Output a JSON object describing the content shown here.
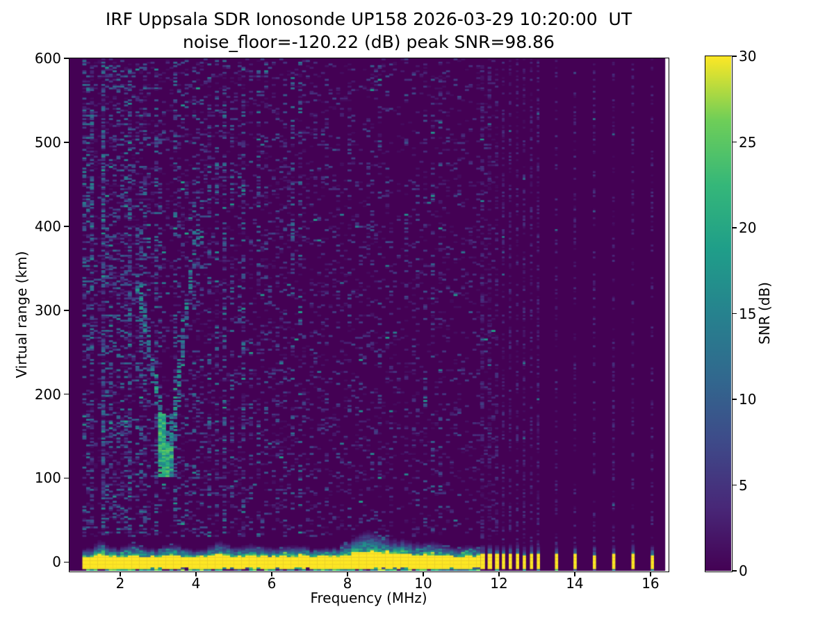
{
  "chart_data": {
    "type": "heatmap",
    "title": "IRF Uppsala SDR Ionosonde UP158 2026-03-29 10:20:00  UT",
    "subtitle": "noise_floor=-120.22 (dB) peak SNR=98.86",
    "station": "IRF Uppsala SDR Ionosonde UP158",
    "timestamp_ut": "2026-03-29 10:20:00",
    "noise_floor_db": -120.22,
    "peak_snr_db": 98.86,
    "xlabel": "Frequency (MHz)",
    "ylabel": "Virtual range (km)",
    "xlim": [
      0.66,
      16.46
    ],
    "ylim": [
      -10.5,
      600.2
    ],
    "xticks": [
      2,
      4,
      6,
      8,
      10,
      12,
      14,
      16
    ],
    "yticks": [
      0,
      100,
      200,
      300,
      400,
      500,
      600
    ],
    "grid": false,
    "legend": "none",
    "colormap": "viridis",
    "colormap_stops": [
      "#440154",
      "#482878",
      "#3e4a89",
      "#31688e",
      "#26828e",
      "#1f9e89",
      "#35b779",
      "#6ece58",
      "#fde725"
    ],
    "colorbar": {
      "label": "SNR (dB)",
      "ticks": [
        0,
        5,
        10,
        15,
        20,
        25,
        30
      ],
      "vmin": 0,
      "vmax": 30
    },
    "data_extent_mhz": [
      1.0,
      16.39
    ],
    "heatmap_model": {
      "seed": 1337,
      "cell_mhz": 0.1,
      "rows": 300,
      "contiguous_mhz": [
        1.0,
        11.95
      ],
      "solid_ground_band": {
        "km": [
          -7.8,
          6.2
        ],
        "mhz": [
          1.0,
          11.5
        ],
        "snr_db": 30
      },
      "ground_fuzz_bumps": [
        [
          1.5,
          8,
          0.22
        ],
        [
          2.3,
          6,
          0.28
        ],
        [
          3.35,
          5,
          0.3
        ],
        [
          4.62,
          8,
          0.26
        ],
        [
          5.5,
          4,
          0.4
        ],
        [
          6.6,
          3,
          0.4
        ],
        [
          8.55,
          16,
          0.55
        ],
        [
          9.6,
          7,
          0.7
        ],
        [
          10.35,
          4,
          0.35
        ],
        [
          11.3,
          4,
          0.3
        ]
      ],
      "rfi_columns": [
        [
          1.07,
          3.2
        ],
        [
          1.17,
          2.0
        ],
        [
          1.25,
          3.6
        ],
        [
          1.4,
          2.2
        ],
        [
          1.55,
          5.5
        ],
        [
          1.63,
          2.6
        ],
        [
          1.75,
          2.8
        ],
        [
          1.88,
          2.2
        ],
        [
          2.0,
          4.6
        ],
        [
          2.12,
          2.2
        ],
        [
          2.25,
          3.8
        ],
        [
          2.4,
          2.4
        ],
        [
          2.52,
          2.0
        ],
        [
          2.62,
          3.0
        ],
        [
          2.78,
          2.0
        ],
        [
          2.95,
          2.2
        ],
        [
          3.1,
          2.4
        ],
        [
          3.45,
          2.2
        ],
        [
          3.6,
          3.4
        ],
        [
          3.78,
          2.2
        ],
        [
          4.0,
          2.9
        ],
        [
          4.18,
          2.0
        ],
        [
          4.35,
          2.7
        ],
        [
          4.55,
          2.0
        ],
        [
          4.75,
          3.3
        ],
        [
          4.95,
          2.0
        ],
        [
          5.1,
          2.2
        ],
        [
          5.25,
          2.9
        ],
        [
          5.45,
          2.2
        ],
        [
          5.65,
          2.0
        ],
        [
          5.8,
          3.1
        ],
        [
          6.0,
          2.0
        ],
        [
          6.2,
          2.5
        ],
        [
          6.4,
          2.0
        ],
        [
          6.55,
          2.3
        ],
        [
          6.75,
          1.8
        ],
        [
          6.9,
          2.0
        ],
        [
          7.1,
          1.7
        ],
        [
          7.3,
          1.9
        ],
        [
          7.5,
          2.0
        ],
        [
          7.7,
          1.7
        ],
        [
          7.9,
          1.8
        ],
        [
          8.1,
          1.8
        ],
        [
          8.3,
          1.8
        ],
        [
          8.5,
          2.7
        ],
        [
          8.7,
          2.0
        ],
        [
          8.85,
          2.3
        ],
        [
          9.1,
          1.8
        ],
        [
          9.3,
          2.0
        ],
        [
          9.55,
          1.7
        ],
        [
          9.8,
          2.0
        ],
        [
          10.05,
          1.7
        ],
        [
          10.25,
          1.9
        ],
        [
          10.45,
          1.7
        ],
        [
          10.6,
          2.0
        ],
        [
          10.8,
          1.6
        ],
        [
          11.0,
          1.9
        ],
        [
          11.2,
          1.7
        ],
        [
          11.4,
          2.0
        ],
        [
          11.6,
          1.9
        ],
        [
          11.8,
          1.9
        ]
      ],
      "echo_trace": {
        "left_branch": [
          [
            2.42,
            345
          ],
          [
            2.62,
            290
          ],
          [
            2.82,
            240
          ],
          [
            3.0,
            195
          ],
          [
            3.14,
            152
          ],
          [
            3.26,
            118
          ]
        ],
        "right_branch": [
          [
            3.32,
            112
          ],
          [
            3.44,
            170
          ],
          [
            3.55,
            225
          ],
          [
            3.66,
            268
          ],
          [
            3.77,
            308
          ],
          [
            3.9,
            352
          ],
          [
            4.03,
            400
          ]
        ],
        "foot_mhz": [
          3.08,
          3.42
        ],
        "foot_km": [
          103,
          178
        ],
        "peak_snr_db_range": [
          10,
          26
        ]
      },
      "pulse_columns": [
        [
          11.57,
          0.12
        ],
        [
          11.76,
          0.12
        ],
        [
          11.95,
          0.11
        ],
        [
          12.12,
          0.085
        ],
        [
          12.3,
          0.085
        ],
        [
          12.49,
          0.085
        ],
        [
          12.67,
          0.085
        ],
        [
          12.86,
          0.085
        ],
        [
          13.04,
          0.085
        ],
        [
          13.52,
          0.085
        ],
        [
          14.01,
          0.085
        ],
        [
          14.52,
          0.085
        ],
        [
          15.03,
          0.085
        ],
        [
          15.54,
          0.085
        ],
        [
          16.05,
          0.085
        ]
      ]
    }
  }
}
